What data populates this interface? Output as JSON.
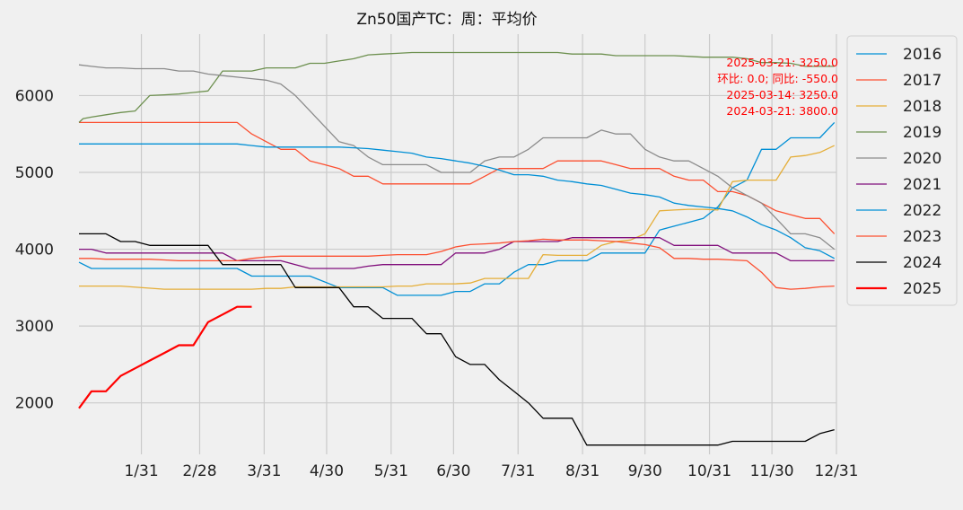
{
  "chart_data": {
    "type": "line",
    "title": "Zn50国产TC：周：平均价",
    "xlabel": "",
    "ylabel": "",
    "x_ticks": [
      "1/31",
      "2/28",
      "3/31",
      "4/30",
      "5/31",
      "6/30",
      "7/31",
      "8/31",
      "9/30",
      "10/31",
      "11/30",
      "12/31"
    ],
    "x_tick_days": [
      31,
      59,
      90,
      120,
      151,
      181,
      212,
      243,
      273,
      304,
      334,
      365
    ],
    "xlim": [
      1,
      365
    ],
    "y_ticks": [
      2000,
      3000,
      4000,
      5000,
      6000
    ],
    "ylim": [
      1330,
      6800
    ],
    "grid": true,
    "legend_position": "upper-right-outside",
    "annotations": [
      "2025-03-21: 3250.0",
      "环比: 0.0; 同比: -550.0",
      "2025-03-14: 3250.0",
      "2024-03-21: 3800.0"
    ],
    "annotation_color": "#ff0000",
    "series": [
      {
        "name": "2016",
        "color": "#008fd5",
        "x": [
          1,
          7,
          35,
          56,
          77,
          84,
          112,
          126,
          133,
          140,
          147,
          154,
          161,
          168,
          175,
          182,
          189,
          196,
          203,
          210,
          217,
          224,
          231,
          238,
          245,
          252,
          259,
          266,
          273,
          280,
          287,
          294,
          301,
          308,
          315,
          322,
          329,
          336,
          343,
          350,
          357,
          364
        ],
        "y": [
          3830,
          3750,
          3750,
          3750,
          3750,
          3650,
          3650,
          3500,
          3500,
          3500,
          3500,
          3400,
          3400,
          3400,
          3400,
          3450,
          3450,
          3550,
          3550,
          3700,
          3800,
          3800,
          3850,
          3850,
          3850,
          3950,
          3950,
          3950,
          3950,
          4250,
          4300,
          4350,
          4400,
          4550,
          4800,
          4900,
          5300,
          5300,
          5450,
          5450,
          5450,
          5650
        ]
      },
      {
        "name": "2017",
        "color": "#fc4f30",
        "x": [
          1,
          7,
          14,
          21,
          28,
          35,
          42,
          49,
          56,
          63,
          70,
          77,
          84,
          91,
          98,
          105,
          112,
          119,
          126,
          133,
          140,
          147,
          154,
          161,
          168,
          175,
          182,
          189,
          196,
          203,
          210,
          217,
          224,
          231,
          238,
          245,
          252,
          259,
          266,
          273,
          280,
          287,
          294,
          301,
          308,
          315,
          322,
          329,
          336,
          343,
          350,
          357,
          364
        ],
        "y": [
          5650,
          5650,
          5650,
          5650,
          5650,
          5650,
          5650,
          5650,
          5650,
          5650,
          5650,
          5650,
          5500,
          5400,
          5300,
          5300,
          5150,
          5100,
          5050,
          4950,
          4950,
          4850,
          4850,
          4850,
          4850,
          4850,
          4850,
          4850,
          4950,
          5050,
          5050,
          5050,
          5050,
          5150,
          5150,
          5150,
          5150,
          5100,
          5050,
          5050,
          5050,
          4950,
          4900,
          4900,
          4750,
          4750,
          4700,
          4600,
          4500,
          4450,
          4400,
          4400,
          4200
        ]
      },
      {
        "name": "2018",
        "color": "#e5ae38",
        "x": [
          1,
          7,
          21,
          42,
          63,
          84,
          91,
          98,
          105,
          112,
          119,
          126,
          133,
          140,
          147,
          154,
          161,
          168,
          175,
          182,
          189,
          196,
          203,
          210,
          217,
          224,
          231,
          238,
          245,
          252,
          259,
          266,
          273,
          280,
          287,
          294,
          301,
          308,
          315,
          322,
          329,
          336,
          343,
          350,
          357,
          364
        ],
        "y": [
          3520,
          3520,
          3520,
          3480,
          3480,
          3480,
          3490,
          3490,
          3510,
          3510,
          3510,
          3510,
          3510,
          3510,
          3510,
          3520,
          3520,
          3550,
          3550,
          3550,
          3560,
          3620,
          3620,
          3620,
          3620,
          3930,
          3920,
          3920,
          3920,
          4050,
          4100,
          4120,
          4200,
          4500,
          4510,
          4520,
          4520,
          4510,
          4880,
          4900,
          4900,
          4900,
          5200,
          5220,
          5260,
          5350
        ]
      },
      {
        "name": "2019",
        "color": "#6d904f",
        "x": [
          1,
          3,
          7,
          14,
          21,
          28,
          35,
          42,
          49,
          56,
          63,
          70,
          77,
          84,
          91,
          98,
          105,
          112,
          119,
          126,
          133,
          140,
          147,
          154,
          161,
          168,
          175,
          182,
          189,
          196,
          203,
          210,
          217,
          224,
          231,
          238,
          245,
          252,
          259,
          266,
          273,
          280,
          287,
          294,
          301,
          308,
          315,
          322,
          329,
          336,
          343,
          350,
          357,
          364
        ],
        "y": [
          5650,
          5700,
          5720,
          5750,
          5780,
          5800,
          6000,
          6010,
          6020,
          6040,
          6060,
          6320,
          6320,
          6320,
          6360,
          6360,
          6360,
          6420,
          6420,
          6450,
          6480,
          6530,
          6540,
          6550,
          6560,
          6560,
          6560,
          6560,
          6560,
          6560,
          6560,
          6560,
          6560,
          6560,
          6560,
          6540,
          6540,
          6540,
          6520,
          6520,
          6520,
          6520,
          6520,
          6510,
          6500,
          6500,
          6500,
          6480,
          6430,
          6430,
          6420,
          6380,
          6380,
          6380
        ]
      },
      {
        "name": "2020",
        "color": "#8b8b8b",
        "x": [
          1,
          7,
          14,
          21,
          28,
          35,
          42,
          49,
          56,
          63,
          70,
          77,
          84,
          91,
          98,
          105,
          112,
          119,
          126,
          133,
          140,
          147,
          154,
          161,
          168,
          175,
          182,
          189,
          196,
          203,
          210,
          217,
          224,
          231,
          238,
          245,
          252,
          259,
          266,
          273,
          280,
          287,
          294,
          301,
          308,
          315,
          322,
          329,
          336,
          343,
          350,
          357,
          364
        ],
        "y": [
          6400,
          6380,
          6360,
          6360,
          6350,
          6350,
          6350,
          6320,
          6320,
          6280,
          6260,
          6240,
          6220,
          6200,
          6150,
          6000,
          5800,
          5600,
          5400,
          5350,
          5200,
          5100,
          5100,
          5100,
          5100,
          5000,
          5000,
          5000,
          5150,
          5200,
          5200,
          5300,
          5450,
          5450,
          5450,
          5450,
          5550,
          5500,
          5500,
          5300,
          5200,
          5150,
          5150,
          5050,
          4950,
          4800,
          4700,
          4600,
          4400,
          4200,
          4200,
          4150,
          4000
        ]
      },
      {
        "name": "2021",
        "color": "#810f7c",
        "x": [
          1,
          7,
          14,
          21,
          28,
          35,
          42,
          49,
          56,
          63,
          70,
          77,
          84,
          91,
          98,
          105,
          112,
          119,
          126,
          133,
          140,
          147,
          154,
          161,
          168,
          175,
          182,
          189,
          196,
          203,
          210,
          217,
          224,
          231,
          238,
          245,
          252,
          259,
          266,
          273,
          280,
          287,
          294,
          301,
          308,
          315,
          322,
          329,
          336,
          343,
          350,
          357,
          364
        ],
        "y": [
          4000,
          4000,
          3950,
          3950,
          3950,
          3950,
          3950,
          3950,
          3950,
          3950,
          3950,
          3850,
          3850,
          3850,
          3850,
          3800,
          3750,
          3750,
          3750,
          3750,
          3780,
          3800,
          3800,
          3800,
          3800,
          3800,
          3950,
          3950,
          3950,
          4000,
          4100,
          4100,
          4100,
          4100,
          4150,
          4150,
          4150,
          4150,
          4150,
          4150,
          4150,
          4050,
          4050,
          4050,
          4050,
          3950,
          3950,
          3950,
          3950,
          3850,
          3850,
          3850,
          3850
        ]
      },
      {
        "name": "2022",
        "color": "#008fd5",
        "x": [
          1,
          7,
          14,
          21,
          28,
          35,
          42,
          49,
          56,
          63,
          70,
          77,
          84,
          91,
          98,
          105,
          112,
          119,
          126,
          133,
          140,
          147,
          154,
          161,
          168,
          175,
          182,
          189,
          196,
          203,
          210,
          217,
          224,
          231,
          238,
          245,
          252,
          259,
          266,
          273,
          280,
          287,
          294,
          301,
          308,
          315,
          322,
          329,
          336,
          343,
          350,
          357,
          364
        ],
        "y": [
          5370,
          5370,
          5370,
          5370,
          5370,
          5370,
          5370,
          5370,
          5370,
          5370,
          5370,
          5370,
          5350,
          5330,
          5330,
          5330,
          5330,
          5330,
          5330,
          5320,
          5310,
          5290,
          5270,
          5250,
          5200,
          5180,
          5150,
          5120,
          5080,
          5030,
          4970,
          4970,
          4950,
          4900,
          4880,
          4850,
          4830,
          4780,
          4730,
          4710,
          4680,
          4600,
          4570,
          4550,
          4530,
          4500,
          4420,
          4320,
          4250,
          4150,
          4020,
          3980,
          3880
        ]
      },
      {
        "name": "2023",
        "color": "#fc4f30",
        "x": [
          1,
          7,
          14,
          21,
          28,
          35,
          42,
          49,
          56,
          63,
          70,
          77,
          84,
          91,
          98,
          105,
          112,
          119,
          126,
          133,
          140,
          147,
          154,
          161,
          168,
          175,
          182,
          189,
          196,
          203,
          210,
          217,
          224,
          231,
          238,
          245,
          252,
          259,
          266,
          273,
          280,
          287,
          294,
          301,
          308,
          315,
          322,
          329,
          336,
          343,
          350,
          357,
          364
        ],
        "y": [
          3880,
          3880,
          3870,
          3870,
          3870,
          3870,
          3860,
          3850,
          3850,
          3850,
          3850,
          3850,
          3880,
          3900,
          3910,
          3910,
          3910,
          3910,
          3910,
          3910,
          3910,
          3920,
          3930,
          3930,
          3930,
          3970,
          4030,
          4060,
          4070,
          4080,
          4100,
          4110,
          4130,
          4120,
          4120,
          4120,
          4110,
          4100,
          4080,
          4060,
          4020,
          3880,
          3880,
          3870,
          3870,
          3860,
          3850,
          3700,
          3500,
          3480,
          3490,
          3510,
          3520
        ]
      },
      {
        "name": "2024",
        "color": "#000000",
        "x": [
          1,
          7,
          14,
          21,
          28,
          35,
          42,
          49,
          56,
          63,
          70,
          77,
          84,
          91,
          98,
          105,
          112,
          119,
          126,
          133,
          140,
          147,
          154,
          161,
          168,
          175,
          182,
          189,
          196,
          203,
          210,
          217,
          224,
          231,
          238,
          245,
          252,
          259,
          266,
          273,
          280,
          287,
          294,
          301,
          308,
          315,
          322,
          329,
          336,
          343,
          350,
          357,
          364
        ],
        "y": [
          4200,
          4200,
          4200,
          4100,
          4100,
          4050,
          4050,
          4050,
          4050,
          4050,
          3800,
          3800,
          3800,
          3800,
          3800,
          3500,
          3500,
          3500,
          3500,
          3250,
          3250,
          3100,
          3100,
          3100,
          2900,
          2900,
          2600,
          2500,
          2500,
          2300,
          2150,
          2000,
          1800,
          1800,
          1800,
          1450,
          1450,
          1450,
          1450,
          1450,
          1450,
          1450,
          1450,
          1450,
          1450,
          1500,
          1500,
          1500,
          1500,
          1500,
          1500,
          1600,
          1650
        ]
      },
      {
        "name": "2025",
        "color": "#ff0000",
        "x": [
          1,
          7,
          14,
          21,
          28,
          35,
          42,
          49,
          56,
          63,
          70,
          77,
          84
        ],
        "y": [
          1930,
          2150,
          2150,
          2350,
          2450,
          2550,
          2650,
          2750,
          2750,
          3050,
          3150,
          3250,
          3250
        ]
      }
    ]
  }
}
